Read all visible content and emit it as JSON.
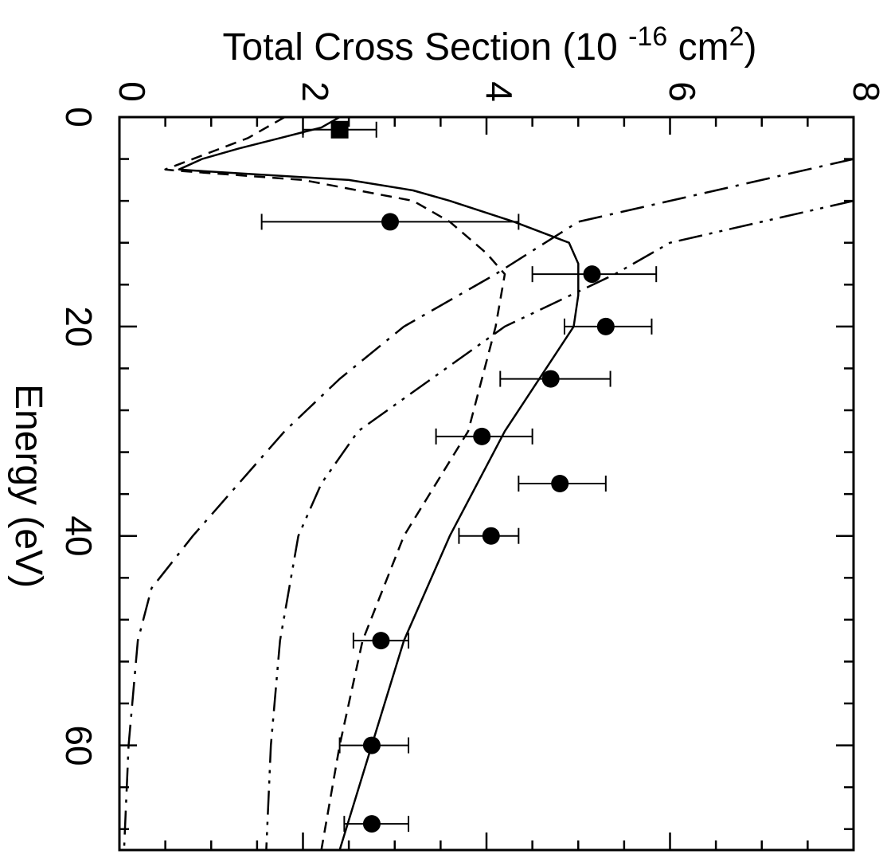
{
  "chart_data": {
    "type": "line",
    "orientation": "rotated-90",
    "xlabel": "Energy (eV)",
    "ylabel_parts": {
      "prefix": "Total Cross Section (10 ",
      "exp": "-16",
      "mid": " cm",
      "sq": "2",
      "suffix": ")"
    },
    "xlim": [
      0,
      70
    ],
    "ylim": [
      0,
      8
    ],
    "x_ticks": [
      "0",
      "20",
      "40",
      "60"
    ],
    "y_ticks": [
      "0",
      "2",
      "4",
      "6",
      "8"
    ],
    "grid": false,
    "series": [
      {
        "style": "solid",
        "points": [
          [
            0,
            2.4
          ],
          [
            1,
            2.2
          ],
          [
            2,
            1.75
          ],
          [
            3,
            1.3
          ],
          [
            4,
            0.9
          ],
          [
            5,
            0.65
          ],
          [
            5.1,
            0.8
          ],
          [
            6,
            2.5
          ],
          [
            7,
            3.2
          ],
          [
            8,
            3.6
          ],
          [
            10,
            4.3
          ],
          [
            12,
            4.9
          ],
          [
            14,
            5.0
          ],
          [
            17,
            5.0
          ],
          [
            20,
            4.95
          ],
          [
            30,
            4.2
          ],
          [
            40,
            3.6
          ],
          [
            50,
            3.1
          ],
          [
            60,
            2.75
          ],
          [
            70,
            2.4
          ]
        ]
      },
      {
        "style": "dashed",
        "points": [
          [
            0,
            1.8
          ],
          [
            2,
            1.4
          ],
          [
            4,
            0.8
          ],
          [
            5,
            0.5
          ],
          [
            5.1,
            0.6
          ],
          [
            6,
            2.0
          ],
          [
            8,
            3.2
          ],
          [
            10,
            3.6
          ],
          [
            13,
            4.0
          ],
          [
            15,
            4.2
          ],
          [
            20,
            4.1
          ],
          [
            30,
            3.8
          ],
          [
            40,
            3.1
          ],
          [
            50,
            2.65
          ],
          [
            60,
            2.4
          ],
          [
            70,
            2.2
          ]
        ]
      },
      {
        "style": "dash-dot",
        "points": [
          [
            4,
            8.0
          ],
          [
            10,
            5.0
          ],
          [
            15,
            4.1
          ],
          [
            20,
            3.1
          ],
          [
            25,
            2.4
          ],
          [
            30,
            1.8
          ],
          [
            35,
            1.3
          ],
          [
            40,
            0.8
          ],
          [
            45,
            0.35
          ],
          [
            50,
            0.2
          ],
          [
            60,
            0.1
          ],
          [
            70,
            0.05
          ]
        ]
      },
      {
        "style": "dash-dot-dot",
        "points": [
          [
            8,
            8.0
          ],
          [
            12,
            6.0
          ],
          [
            15,
            5.4
          ],
          [
            20,
            4.2
          ],
          [
            25,
            3.4
          ],
          [
            30,
            2.6
          ],
          [
            35,
            2.2
          ],
          [
            40,
            1.95
          ],
          [
            50,
            1.75
          ],
          [
            60,
            1.65
          ],
          [
            70,
            1.6
          ]
        ]
      }
    ],
    "measurements": [
      {
        "marker": "square",
        "x": 1.2,
        "y": 2.4,
        "yerr": [
          2.0,
          2.8
        ]
      },
      {
        "marker": "circle",
        "x": 10,
        "y": 2.95,
        "yerr": [
          1.55,
          4.35
        ]
      },
      {
        "marker": "circle",
        "x": 15,
        "y": 5.15,
        "yerr": [
          4.5,
          5.85
        ]
      },
      {
        "marker": "circle",
        "x": 20,
        "y": 5.3,
        "yerr": [
          4.85,
          5.8
        ]
      },
      {
        "marker": "circle",
        "x": 25,
        "y": 4.7,
        "yerr": [
          4.15,
          5.35
        ]
      },
      {
        "marker": "circle",
        "x": 30.5,
        "y": 3.95,
        "yerr": [
          3.45,
          4.5
        ]
      },
      {
        "marker": "circle",
        "x": 35,
        "y": 4.8,
        "yerr": [
          4.35,
          5.3
        ]
      },
      {
        "marker": "circle",
        "x": 40,
        "y": 4.05,
        "yerr": [
          3.7,
          4.35
        ]
      },
      {
        "marker": "circle",
        "x": 50,
        "y": 2.85,
        "yerr": [
          2.55,
          3.15
        ]
      },
      {
        "marker": "circle",
        "x": 60,
        "y": 2.75,
        "yerr": [
          2.4,
          3.15
        ]
      },
      {
        "marker": "circle",
        "x": 67.5,
        "y": 2.75,
        "yerr": [
          2.45,
          3.15
        ]
      }
    ]
  }
}
